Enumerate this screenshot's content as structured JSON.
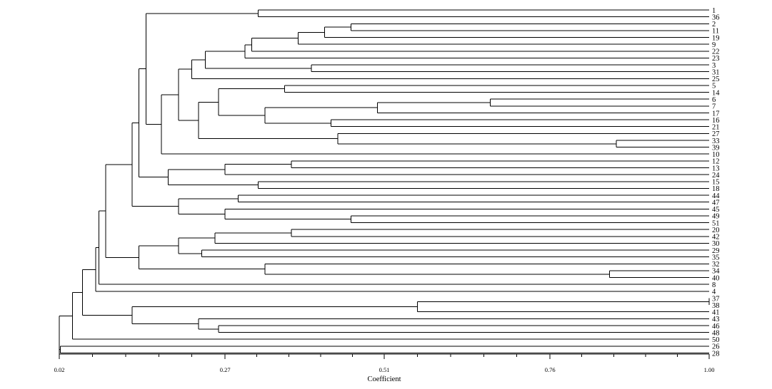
{
  "chart_data": {
    "type": "dendrogram",
    "xlabel": "Coefficient",
    "xlim": [
      0.02,
      1.0
    ],
    "x_ticks": [
      "0.02",
      "0.27",
      "0.51",
      "0.76",
      "1.00"
    ],
    "x_tick_values": [
      0.02,
      0.27,
      0.51,
      0.76,
      1.0
    ],
    "leaves": [
      "1",
      "36",
      "2",
      "11",
      "19",
      "9",
      "22",
      "23",
      "3",
      "31",
      "25",
      "5",
      "14",
      "6",
      "7",
      "17",
      "16",
      "21",
      "27",
      "33",
      "39",
      "10",
      "12",
      "13",
      "24",
      "15",
      "18",
      "44",
      "47",
      "45",
      "49",
      "51",
      "20",
      "42",
      "30",
      "29",
      "35",
      "32",
      "34",
      "40",
      "8",
      "4",
      "37",
      "38",
      "41",
      "43",
      "46",
      "48",
      "50",
      "26",
      "28"
    ],
    "tree": {
      "h": 0.02,
      "c": [
        {
          "h": 0.04,
          "c": [
            {
              "h": 0.055,
              "c": [
                {
                  "h": 0.075,
                  "c": [
                    {
                      "h": 0.08,
                      "c": [
                        {
                          "h": 0.09,
                          "c": [
                            {
                              "h": 0.13,
                              "c": [
                                {
                                  "h": 0.14,
                                  "c": [
                                    {
                                      "h": 0.151,
                                      "c": [
                                        {
                                          "h": 0.32,
                                          "c": [
                                            "1",
                                            "36"
                                          ]
                                        },
                                        {
                                          "h": 0.174,
                                          "c": [
                                            {
                                              "h": 0.2,
                                              "c": [
                                                {
                                                  "h": 0.22,
                                                  "c": [
                                                    {
                                                      "h": 0.24,
                                                      "c": [
                                                        {
                                                          "h": 0.3,
                                                          "c": [
                                                            {
                                                              "h": 0.31,
                                                              "c": [
                                                                {
                                                                  "h": 0.38,
                                                                  "c": [
                                                                    {
                                                                      "h": 0.42,
                                                                      "c": [
                                                                        {
                                                                          "h": 0.46,
                                                                          "c": [
                                                                            "2",
                                                                            "11"
                                                                          ]
                                                                        },
                                                                        "19"
                                                                      ]
                                                                    },
                                                                    "9"
                                                                  ]
                                                                },
                                                                "22"
                                                              ]
                                                            },
                                                            "23"
                                                          ]
                                                        },
                                                        {
                                                          "h": 0.4,
                                                          "c": [
                                                            "3",
                                                            "31"
                                                          ]
                                                        }
                                                      ]
                                                    },
                                                    "25"
                                                  ]
                                                },
                                                {
                                                  "h": 0.23,
                                                  "c": [
                                                    {
                                                      "h": 0.26,
                                                      "c": [
                                                        {
                                                          "h": 0.36,
                                                          "c": [
                                                            "5",
                                                            "14"
                                                          ]
                                                        },
                                                        {
                                                          "h": 0.33,
                                                          "c": [
                                                            {
                                                              "h": 0.5,
                                                              "c": [
                                                                {
                                                                  "h": 0.67,
                                                                  "c": [
                                                                    "6",
                                                                    "7"
                                                                  ]
                                                                },
                                                                "17"
                                                              ]
                                                            },
                                                            {
                                                              "h": 0.43,
                                                              "c": [
                                                                "16",
                                                                "21"
                                                              ]
                                                            }
                                                          ]
                                                        }
                                                      ]
                                                    },
                                                    {
                                                      "h": 0.44,
                                                      "c": [
                                                        "27",
                                                        {
                                                          "h": 0.86,
                                                          "c": [
                                                            "33",
                                                            "39"
                                                          ]
                                                        }
                                                      ]
                                                    }
                                                  ]
                                                }
                                              ]
                                            },
                                            "10"
                                          ]
                                        }
                                      ]
                                    },
                                    {
                                      "h": 0.184,
                                      "c": [
                                        {
                                          "h": 0.27,
                                          "c": [
                                            {
                                              "h": 0.37,
                                              "c": [
                                                "12",
                                                "13"
                                              ]
                                            },
                                            "24"
                                          ]
                                        },
                                        {
                                          "h": 0.32,
                                          "c": [
                                            "15",
                                            "18"
                                          ]
                                        }
                                      ]
                                    }
                                  ]
                                },
                                {
                                  "h": 0.2,
                                  "c": [
                                    {
                                      "h": 0.29,
                                      "c": [
                                        "44",
                                        "47"
                                      ]
                                    },
                                    {
                                      "h": 0.27,
                                      "c": [
                                        "45",
                                        {
                                          "h": 0.46,
                                          "c": [
                                            "49",
                                            "51"
                                          ]
                                        }
                                      ]
                                    }
                                  ]
                                }
                              ]
                            },
                            {
                              "h": 0.14,
                              "c": [
                                {
                                  "h": 0.2,
                                  "c": [
                                    {
                                      "h": 0.255,
                                      "c": [
                                        {
                                          "h": 0.37,
                                          "c": [
                                            "20",
                                            "42"
                                          ]
                                        },
                                        "30"
                                      ]
                                    },
                                    {
                                      "h": 0.235,
                                      "c": [
                                        "29",
                                        "35"
                                      ]
                                    }
                                  ]
                                },
                                {
                                  "h": 0.33,
                                  "c": [
                                    "32",
                                    {
                                      "h": 0.85,
                                      "c": [
                                        "34",
                                        "40"
                                      ]
                                    }
                                  ]
                                }
                              ]
                            }
                          ]
                        },
                        "8"
                      ]
                    },
                    "4"
                  ]
                },
                {
                  "h": 0.13,
                  "c": [
                    {
                      "h": 0.56,
                      "c": [
                        {
                          "h": 1.0,
                          "c": [
                            "37",
                            "38"
                          ]
                        },
                        "41"
                      ]
                    },
                    {
                      "h": 0.23,
                      "c": [
                        "43",
                        {
                          "h": 0.26,
                          "c": [
                            "46",
                            "48"
                          ]
                        }
                      ]
                    }
                  ]
                }
              ]
            },
            "50"
          ]
        },
        {
          "h": 0.0218,
          "c": [
            "26",
            "28"
          ]
        }
      ]
    }
  }
}
